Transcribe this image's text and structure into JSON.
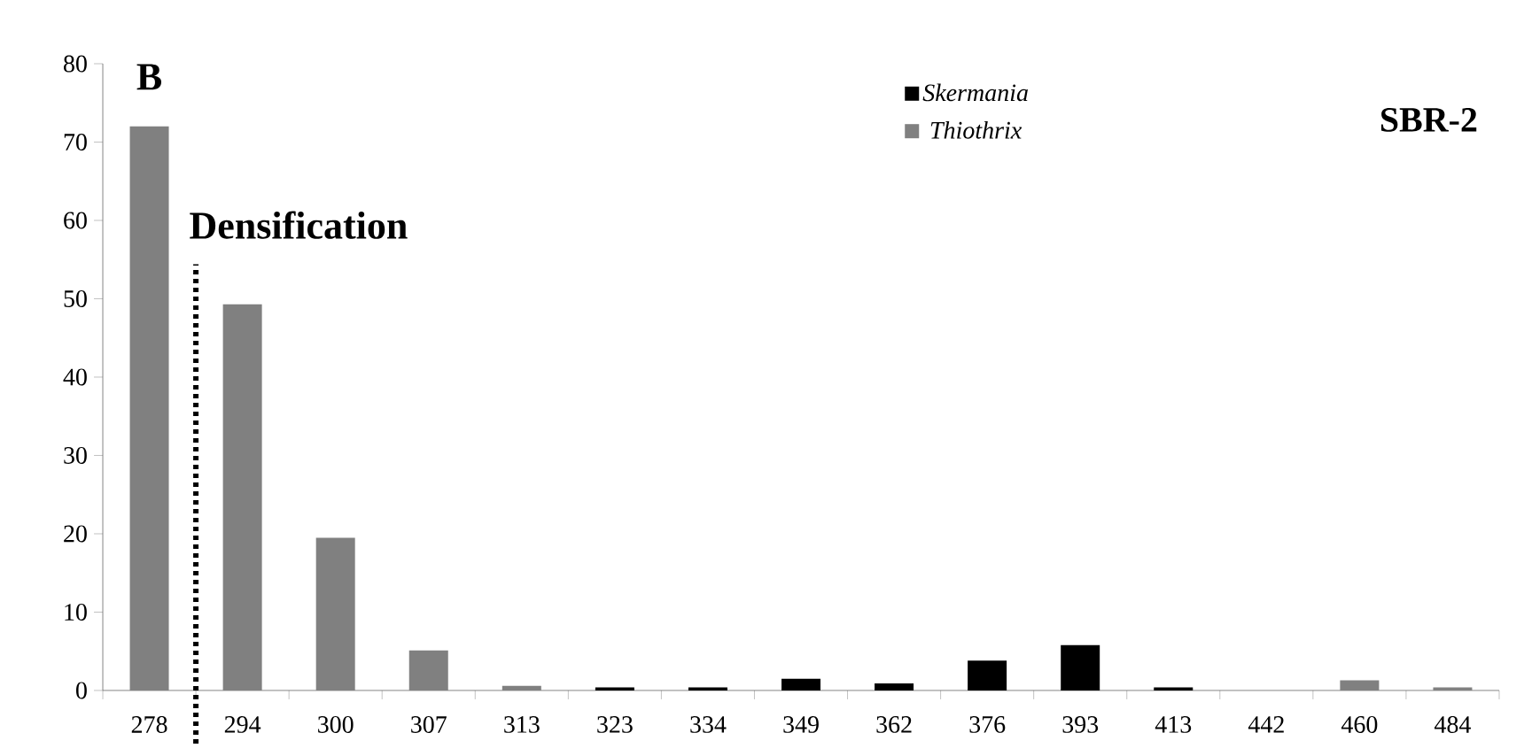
{
  "chart_data": {
    "type": "bar",
    "title": "SBR-2",
    "categories": [
      "278",
      "294",
      "300",
      "307",
      "313",
      "323",
      "334",
      "349",
      "362",
      "376",
      "393",
      "413",
      "442",
      "460",
      "484"
    ],
    "series": [
      {
        "name": "Skermania",
        "color": "#000000",
        "values": [
          null,
          null,
          null,
          null,
          null,
          0.4,
          0.4,
          1.5,
          0.9,
          3.8,
          5.8,
          0.4,
          null,
          null,
          null
        ]
      },
      {
        "name": "Thiothrix",
        "color": "#808080",
        "values": [
          72,
          49.3,
          19.5,
          5.1,
          0.6,
          null,
          null,
          null,
          null,
          null,
          null,
          null,
          null,
          1.3,
          0.4
        ]
      }
    ],
    "ylim": [
      0,
      80
    ],
    "yticks": [
      0,
      10,
      20,
      30,
      40,
      50,
      60,
      70,
      80
    ],
    "grid": false,
    "legend": "top",
    "annotations": [
      "B",
      "Densification"
    ]
  }
}
